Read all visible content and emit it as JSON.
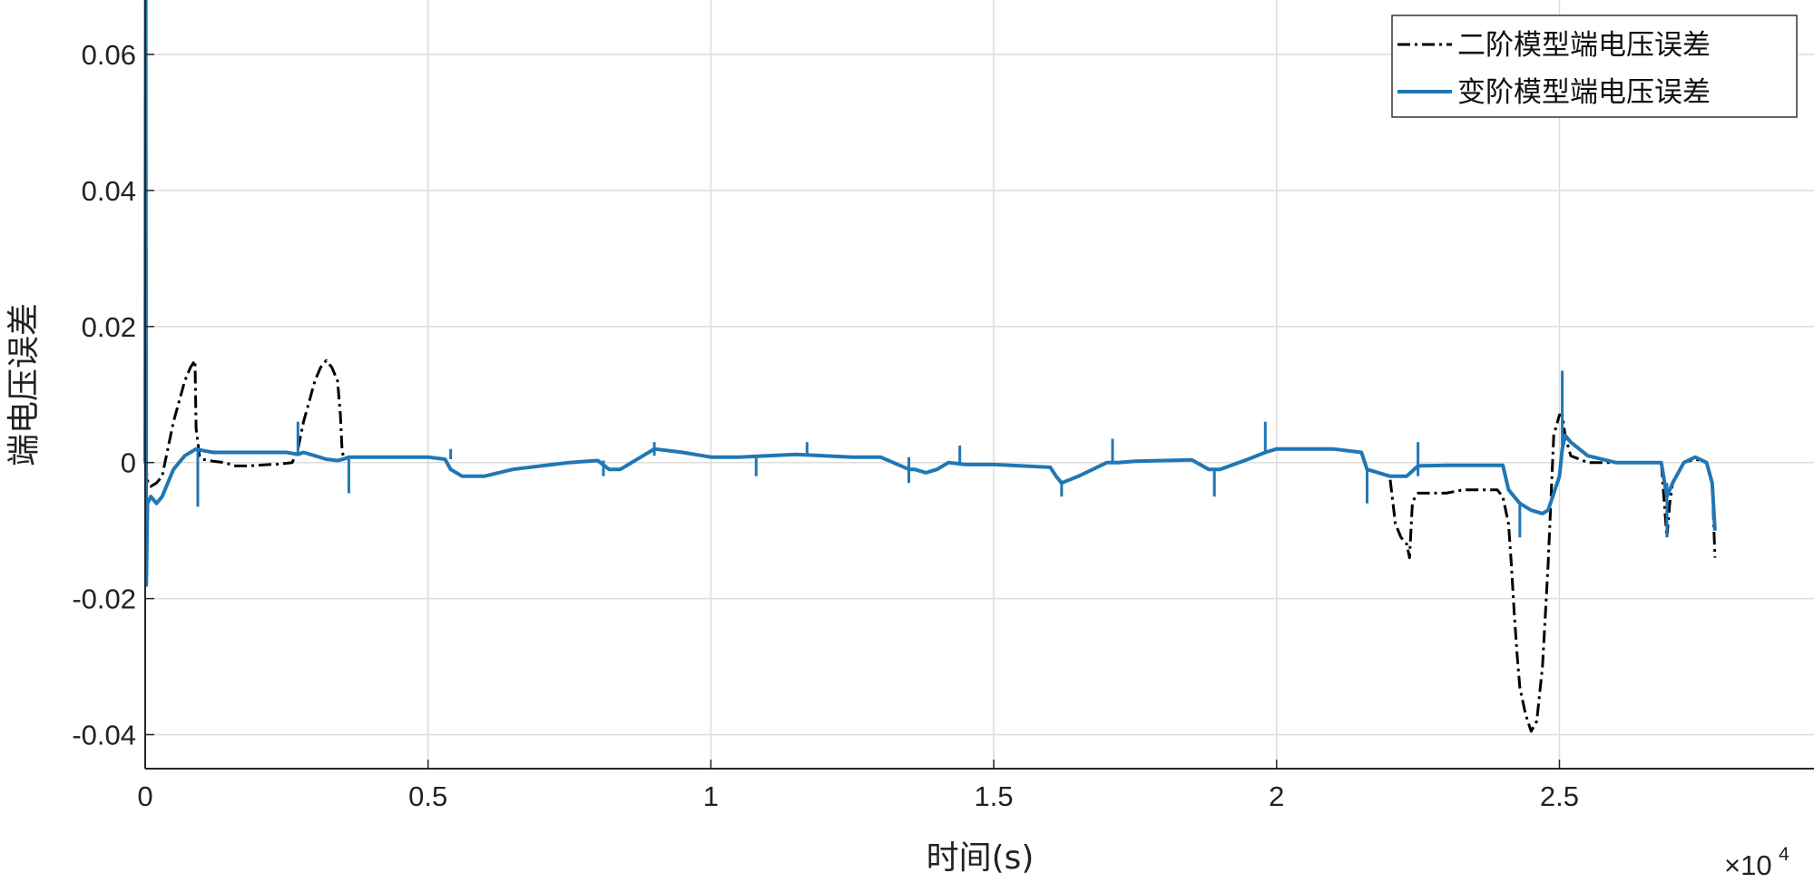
{
  "chart_data": {
    "type": "line",
    "xlabel": "时间(s)",
    "ylabel": "端电压误差",
    "x_exponent_label": "×10",
    "x_exponent_power": "4",
    "xlim": [
      0,
      2.95
    ],
    "ylim": [
      -0.045,
      0.068
    ],
    "x_ticks": [
      0,
      0.5,
      1,
      1.5,
      2,
      2.5
    ],
    "x_tick_labels": [
      "0",
      "0.5",
      "1",
      "1.5",
      "2",
      "2.5"
    ],
    "y_ticks": [
      -0.04,
      -0.02,
      0,
      0.02,
      0.04,
      0.06
    ],
    "y_tick_labels": [
      "-0.04",
      "-0.02",
      "0",
      "0.02",
      "0.04",
      "0.06"
    ],
    "grid": true,
    "legend_position": "top-right",
    "colors": {
      "series_2rc": "#000000",
      "series_var": "#1f77b4",
      "grid": "#dcdcdc",
      "axis": "#262626"
    },
    "series": [
      {
        "name": "二阶模型端电压误差",
        "style": "dash-dot",
        "color": "#000000",
        "x": [
          0,
          0.005,
          0.01,
          0.02,
          0.03,
          0.04,
          0.05,
          0.06,
          0.07,
          0.08,
          0.088,
          0.09,
          0.093,
          0.096,
          0.1,
          0.12,
          0.14,
          0.16,
          0.18,
          0.2,
          0.22,
          0.24,
          0.26,
          0.27,
          0.275,
          0.28,
          0.29,
          0.3,
          0.31,
          0.32,
          0.33,
          0.34,
          0.345,
          0.348,
          0.35,
          0.36,
          0.38,
          0.4,
          0.45,
          0.5,
          0.53,
          0.54,
          0.56,
          0.6,
          0.65,
          0.7,
          0.75,
          0.8,
          0.82,
          0.84,
          0.88,
          0.9,
          0.95,
          1.0,
          1.05,
          1.1,
          1.15,
          1.2,
          1.25,
          1.3,
          1.35,
          1.36,
          1.38,
          1.4,
          1.42,
          1.45,
          1.5,
          1.55,
          1.6,
          1.61,
          1.62,
          1.65,
          1.7,
          1.72,
          1.75,
          1.8,
          1.85,
          1.88,
          1.9,
          1.95,
          1.98,
          2.0,
          2.05,
          2.1,
          2.15,
          2.16,
          2.2,
          2.21,
          2.22,
          2.23,
          2.235,
          2.24,
          2.245,
          2.25,
          2.27,
          2.3,
          2.33,
          2.36,
          2.39,
          2.4,
          2.41,
          2.415,
          2.42,
          2.425,
          2.43,
          2.44,
          2.45,
          2.46,
          2.47,
          2.48,
          2.49,
          2.5,
          2.505,
          2.51,
          2.52,
          2.55,
          2.6,
          2.65,
          2.68,
          2.69,
          2.695,
          2.7,
          2.72,
          2.74,
          2.76,
          2.77,
          2.775
        ],
        "y": [
          0,
          -0.003,
          -0.0035,
          -0.003,
          -0.002,
          0.002,
          0.006,
          0.009,
          0.012,
          0.014,
          0.015,
          0.005,
          0.003,
          0.001,
          0.0005,
          0.0002,
          0.0,
          -0.0005,
          -0.0005,
          -0.0004,
          -0.0003,
          -0.0002,
          0.0,
          0.002,
          0.004,
          0.006,
          0.009,
          0.012,
          0.014,
          0.015,
          0.014,
          0.012,
          0.007,
          0.002,
          0.001,
          0.0008,
          0.0008,
          0.0008,
          0.0008,
          0.0008,
          0.0005,
          -0.001,
          -0.002,
          -0.002,
          -0.001,
          -0.0005,
          0.0,
          0.0003,
          -0.001,
          -0.001,
          0.001,
          0.002,
          0.0015,
          0.0008,
          0.0008,
          0.001,
          0.0012,
          0.001,
          0.0008,
          0.0008,
          -0.001,
          -0.001,
          -0.0015,
          -0.001,
          0.0,
          -0.0003,
          -0.0003,
          -0.0005,
          -0.0007,
          -0.002,
          -0.003,
          -0.002,
          0.0,
          0.0,
          0.0002,
          0.0003,
          0.0004,
          -0.001,
          -0.001,
          0.0005,
          0.0015,
          0.002,
          0.002,
          0.002,
          0.0015,
          -0.001,
          -0.002,
          -0.009,
          -0.011,
          -0.012,
          -0.014,
          -0.006,
          -0.005,
          -0.0045,
          -0.0045,
          -0.0045,
          -0.004,
          -0.004,
          -0.004,
          -0.005,
          -0.009,
          -0.015,
          -0.022,
          -0.028,
          -0.033,
          -0.037,
          -0.0395,
          -0.038,
          -0.03,
          -0.015,
          0.004,
          0.007,
          0.007,
          0.004,
          0.001,
          0.0,
          0.0,
          0.0,
          0.0,
          -0.011,
          -0.006,
          -0.003,
          0.0,
          0.0005,
          0.0,
          -0.003,
          -0.014
        ]
      },
      {
        "name": "变阶模型端电压误差",
        "style": "solid",
        "color": "#1f77b4",
        "x": [
          0,
          0.001,
          0.002,
          0.004,
          0.01,
          0.02,
          0.03,
          0.04,
          0.05,
          0.06,
          0.07,
          0.08,
          0.09,
          0.1,
          0.12,
          0.15,
          0.2,
          0.25,
          0.27,
          0.28,
          0.3,
          0.32,
          0.34,
          0.35,
          0.36,
          0.38,
          0.4,
          0.45,
          0.5,
          0.53,
          0.54,
          0.56,
          0.6,
          0.65,
          0.7,
          0.75,
          0.8,
          0.82,
          0.84,
          0.88,
          0.9,
          0.95,
          1.0,
          1.05,
          1.1,
          1.15,
          1.2,
          1.25,
          1.3,
          1.35,
          1.36,
          1.38,
          1.4,
          1.42,
          1.45,
          1.5,
          1.55,
          1.6,
          1.61,
          1.62,
          1.65,
          1.7,
          1.72,
          1.75,
          1.8,
          1.85,
          1.88,
          1.9,
          1.95,
          1.98,
          2.0,
          2.05,
          2.1,
          2.15,
          2.16,
          2.2,
          2.23,
          2.25,
          2.3,
          2.35,
          2.4,
          2.41,
          2.43,
          2.45,
          2.47,
          2.48,
          2.5,
          2.505,
          2.51,
          2.52,
          2.55,
          2.6,
          2.65,
          2.68,
          2.69,
          2.7,
          2.72,
          2.74,
          2.76,
          2.77,
          2.775
        ],
        "y": [
          0,
          0.068,
          -0.018,
          -0.006,
          -0.005,
          -0.006,
          -0.005,
          -0.003,
          -0.001,
          0.0,
          0.001,
          0.0015,
          0.002,
          0.0018,
          0.0015,
          0.0015,
          0.0015,
          0.0015,
          0.0012,
          0.0015,
          0.001,
          0.0005,
          0.0003,
          0.0005,
          0.0008,
          0.0008,
          0.0008,
          0.0008,
          0.0008,
          0.0005,
          -0.001,
          -0.002,
          -0.002,
          -0.001,
          -0.0005,
          0.0,
          0.0003,
          -0.001,
          -0.001,
          0.001,
          0.002,
          0.0015,
          0.0008,
          0.0008,
          0.001,
          0.0012,
          0.001,
          0.0008,
          0.0008,
          -0.001,
          -0.001,
          -0.0015,
          -0.001,
          0.0,
          -0.0003,
          -0.0003,
          -0.0005,
          -0.0007,
          -0.002,
          -0.003,
          -0.002,
          0.0,
          0.0,
          0.0002,
          0.0003,
          0.0004,
          -0.001,
          -0.001,
          0.0005,
          0.0015,
          0.002,
          0.002,
          0.002,
          0.0015,
          -0.001,
          -0.002,
          -0.002,
          -0.0005,
          -0.0004,
          -0.0004,
          -0.0004,
          -0.004,
          -0.006,
          -0.007,
          -0.0075,
          -0.007,
          -0.002,
          0.002,
          0.004,
          0.003,
          0.001,
          0.0,
          0.0,
          0.0,
          -0.005,
          -0.003,
          0.0,
          0.0008,
          0.0,
          -0.003,
          -0.01
        ]
      }
    ],
    "spikes": [
      {
        "x": 0.093,
        "y0": 0.002,
        "y1": -0.0065
      },
      {
        "x": 0.27,
        "y0": 0.001,
        "y1": 0.006
      },
      {
        "x": 0.36,
        "y0": 0.0005,
        "y1": -0.0045
      },
      {
        "x": 0.54,
        "y0": 0.0005,
        "y1": 0.002
      },
      {
        "x": 0.81,
        "y0": 0.0003,
        "y1": -0.002
      },
      {
        "x": 0.9,
        "y0": 0.001,
        "y1": 0.003
      },
      {
        "x": 1.08,
        "y0": 0.001,
        "y1": -0.002
      },
      {
        "x": 1.17,
        "y0": 0.0012,
        "y1": 0.003
      },
      {
        "x": 1.35,
        "y0": 0.0008,
        "y1": -0.003
      },
      {
        "x": 1.44,
        "y0": 0.0,
        "y1": 0.0025
      },
      {
        "x": 1.62,
        "y0": -0.003,
        "y1": -0.005
      },
      {
        "x": 1.71,
        "y0": 0.0,
        "y1": 0.0035
      },
      {
        "x": 1.89,
        "y0": -0.001,
        "y1": -0.005
      },
      {
        "x": 1.98,
        "y0": 0.0015,
        "y1": 0.006
      },
      {
        "x": 2.16,
        "y0": -0.001,
        "y1": -0.006
      },
      {
        "x": 2.25,
        "y0": -0.002,
        "y1": 0.003
      },
      {
        "x": 2.43,
        "y0": -0.006,
        "y1": -0.011
      },
      {
        "x": 2.505,
        "y0": 0.002,
        "y1": 0.0135
      },
      {
        "x": 2.69,
        "y0": -0.003,
        "y1": -0.011
      }
    ]
  }
}
